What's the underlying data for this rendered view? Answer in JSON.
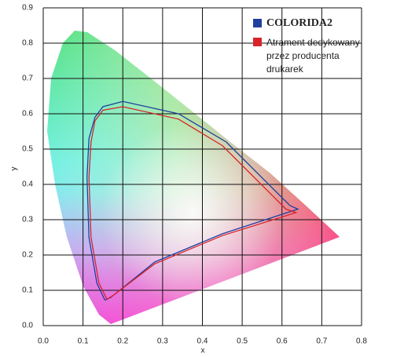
{
  "chart_data": {
    "type": "line",
    "x_label": "x",
    "y_label": "y",
    "xlim": [
      0,
      0.8
    ],
    "ylim": [
      0,
      0.9
    ],
    "xticks": [
      {
        "value": 0,
        "label": "0.0"
      },
      0.1,
      0.2,
      0.3,
      0.4,
      0.5,
      0.6,
      0.7,
      0.8
    ],
    "yticks": [
      {
        "value": 0,
        "label": "0.0"
      },
      0.1,
      0.2,
      0.3,
      0.4,
      0.5,
      0.6,
      0.7,
      0.8,
      0.9
    ],
    "grid": true,
    "series": [
      {
        "name": "COLORIDA2",
        "color": "#1f3f9f",
        "x": [
          0.155,
          0.17,
          0.28,
          0.45,
          0.64,
          0.62,
          0.46,
          0.34,
          0.2,
          0.15,
          0.13,
          0.115,
          0.11,
          0.115,
          0.135,
          0.155
        ],
        "values": [
          0.072,
          0.08,
          0.18,
          0.26,
          0.33,
          0.34,
          0.52,
          0.6,
          0.635,
          0.62,
          0.59,
          0.53,
          0.42,
          0.25,
          0.12,
          0.072
        ]
      },
      {
        "name": "Atrament dedykowany przez producenta drukarek",
        "color": "#d8232a",
        "x": [
          0.16,
          0.175,
          0.28,
          0.45,
          0.635,
          0.61,
          0.45,
          0.34,
          0.2,
          0.15,
          0.13,
          0.12,
          0.115,
          0.12,
          0.14,
          0.16
        ],
        "values": [
          0.075,
          0.085,
          0.175,
          0.255,
          0.32,
          0.33,
          0.51,
          0.585,
          0.62,
          0.61,
          0.58,
          0.52,
          0.42,
          0.25,
          0.12,
          0.075
        ]
      }
    ]
  }
}
